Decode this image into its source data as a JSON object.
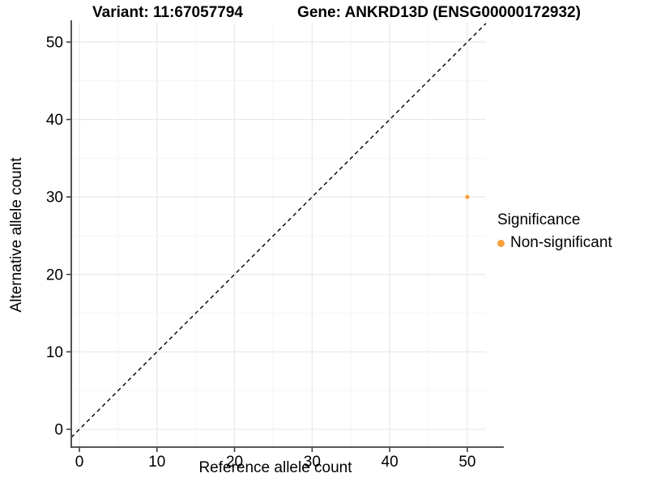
{
  "chart_data": {
    "type": "scatter",
    "titles": {
      "left": "Variant: 11:67057794",
      "right": "Gene: ANKRD13D (ENSG00000172932)"
    },
    "xlabel": "Reference allele count",
    "ylabel": "Alternative allele count",
    "x_ticks": [
      0,
      10,
      20,
      30,
      40,
      50
    ],
    "y_ticks": [
      0,
      10,
      20,
      30,
      40,
      50
    ],
    "x_minor_ticks": [
      5,
      15,
      25,
      35,
      45
    ],
    "y_minor_ticks": [
      5,
      15,
      25,
      35,
      45
    ],
    "xlim": [
      -1.1,
      52.4
    ],
    "ylim": [
      -2.3,
      52.5
    ],
    "grid": "major+minor",
    "reference_line": {
      "kind": "identity y = x",
      "style": "dashed",
      "color": "#000000"
    },
    "series": [
      {
        "name": "Non-significant",
        "color": "#F9A03F",
        "points": [
          [
            50,
            30
          ]
        ]
      }
    ],
    "legend": {
      "position": "right",
      "title": "Significance",
      "items": [
        {
          "label": "Non-significant",
          "color": "#F9A03F"
        }
      ]
    }
  },
  "style": {
    "background": "#FFFFFF",
    "axis_line_color": "#404040",
    "tick_color": "#404040",
    "grid_major_color": "#E9E9E9",
    "grid_minor_color": "#F4F4F4",
    "text_color": "#000000"
  }
}
